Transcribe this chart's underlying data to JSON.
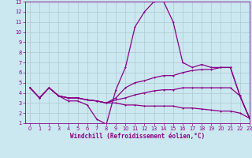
{
  "xlabel": "Windchill (Refroidissement éolien,°C)",
  "background_color": "#cbe8f0",
  "grid_color": "#b0c8d0",
  "line_color": "#880088",
  "x_hours": [
    0,
    1,
    2,
    3,
    4,
    5,
    6,
    7,
    8,
    9,
    10,
    11,
    12,
    13,
    14,
    15,
    16,
    17,
    18,
    19,
    20,
    21,
    22,
    23
  ],
  "line1_y": [
    4.5,
    3.5,
    4.5,
    3.7,
    3.2,
    3.2,
    2.8,
    1.4,
    0.9,
    4.3,
    6.5,
    10.5,
    12.0,
    13.0,
    13.0,
    11.0,
    7.0,
    6.5,
    6.8,
    6.5,
    6.5,
    6.5,
    3.7,
    1.5
  ],
  "line2_y": [
    4.5,
    3.5,
    4.5,
    3.7,
    3.5,
    3.5,
    3.3,
    3.2,
    3.0,
    3.5,
    4.5,
    5.0,
    5.2,
    5.5,
    5.7,
    5.7,
    6.0,
    6.2,
    6.3,
    6.3,
    6.5,
    6.5,
    3.7,
    1.5
  ],
  "line3_y": [
    4.5,
    3.5,
    4.5,
    3.7,
    3.5,
    3.5,
    3.3,
    3.2,
    3.0,
    3.3,
    3.5,
    3.8,
    4.0,
    4.2,
    4.3,
    4.3,
    4.5,
    4.5,
    4.5,
    4.5,
    4.5,
    4.5,
    3.7,
    1.5
  ],
  "line4_y": [
    4.5,
    3.5,
    4.5,
    3.7,
    3.5,
    3.5,
    3.3,
    3.2,
    3.0,
    3.0,
    2.8,
    2.8,
    2.7,
    2.7,
    2.7,
    2.7,
    2.5,
    2.5,
    2.4,
    2.3,
    2.2,
    2.2,
    2.0,
    1.5
  ],
  "xlim": [
    -0.5,
    23
  ],
  "ylim": [
    1,
    13
  ],
  "yticks": [
    1,
    2,
    3,
    4,
    5,
    6,
    7,
    8,
    9,
    10,
    11,
    12,
    13
  ],
  "xticks": [
    0,
    1,
    2,
    3,
    4,
    5,
    6,
    7,
    8,
    9,
    10,
    11,
    12,
    13,
    14,
    15,
    16,
    17,
    18,
    19,
    20,
    21,
    22,
    23
  ],
  "tick_color": "#880088",
  "xlabel_color": "#880088",
  "xlabel_fontsize": 5.5,
  "tick_fontsize": 4.8
}
